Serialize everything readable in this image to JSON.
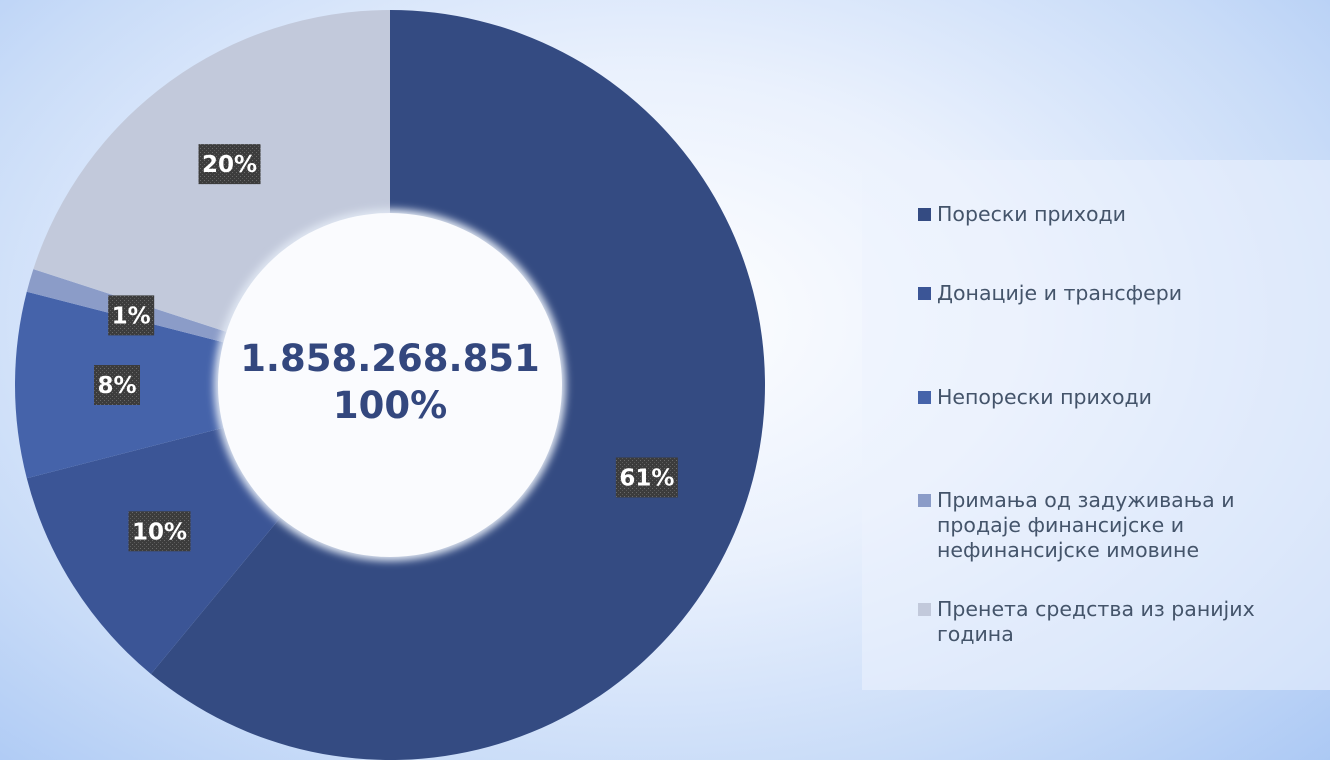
{
  "chart_data": {
    "type": "pie",
    "variant": "donut",
    "categories": [
      "Порески приходи",
      "Донације и трансфери",
      "Непорески приходи",
      "Примања од задуживања и продаје финансијске и нефинансијске имовине",
      "Пренета средства из ранијих година"
    ],
    "values": [
      61,
      10,
      8,
      1,
      20
    ],
    "data_labels": [
      "61%",
      "10%",
      "8%",
      "1%",
      "20%"
    ],
    "colors": [
      "#344b82",
      "#3b5596",
      "#4563aa",
      "#8b9cc8",
      "#c2c9db"
    ],
    "center_total": "1.858.268.851",
    "center_percent": "100%",
    "legend_position": "right"
  },
  "legend": {
    "items": [
      {
        "label": "Порески приходи",
        "color": "#344b82"
      },
      {
        "label": "Донације и трансфери",
        "color": "#3b5596"
      },
      {
        "label": "Непорески приходи",
        "color": "#4563aa"
      },
      {
        "label": "Примања од задуживања и продаје финансијске и нефинансијске имовине",
        "color": "#8b9cc8"
      },
      {
        "label": "Пренета средства из ранијих година",
        "color": "#c2c9db"
      }
    ]
  }
}
